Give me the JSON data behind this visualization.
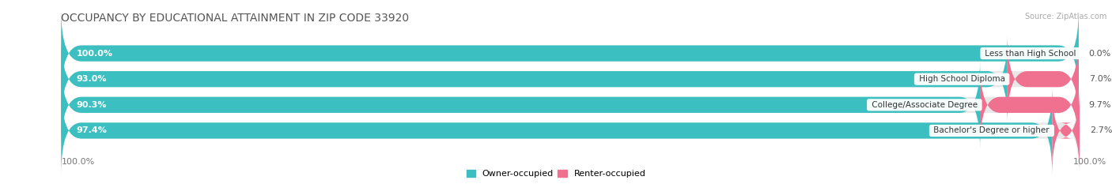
{
  "title": "OCCUPANCY BY EDUCATIONAL ATTAINMENT IN ZIP CODE 33920",
  "source": "Source: ZipAtlas.com",
  "categories": [
    "Less than High School",
    "High School Diploma",
    "College/Associate Degree",
    "Bachelor's Degree or higher"
  ],
  "owner_values": [
    100.0,
    93.0,
    90.3,
    97.4
  ],
  "renter_values": [
    0.0,
    7.0,
    9.7,
    2.7
  ],
  "owner_color": "#3bbfc0",
  "renter_color": "#f07090",
  "bg_color": "#ffffff",
  "bar_bg_color": "#e8e8e8",
  "title_fontsize": 10,
  "label_fontsize": 8,
  "bar_height": 0.62,
  "x_left_label": "100.0%",
  "x_right_label": "100.0%",
  "legend_owner": "Owner-occupied",
  "legend_renter": "Renter-occupied"
}
